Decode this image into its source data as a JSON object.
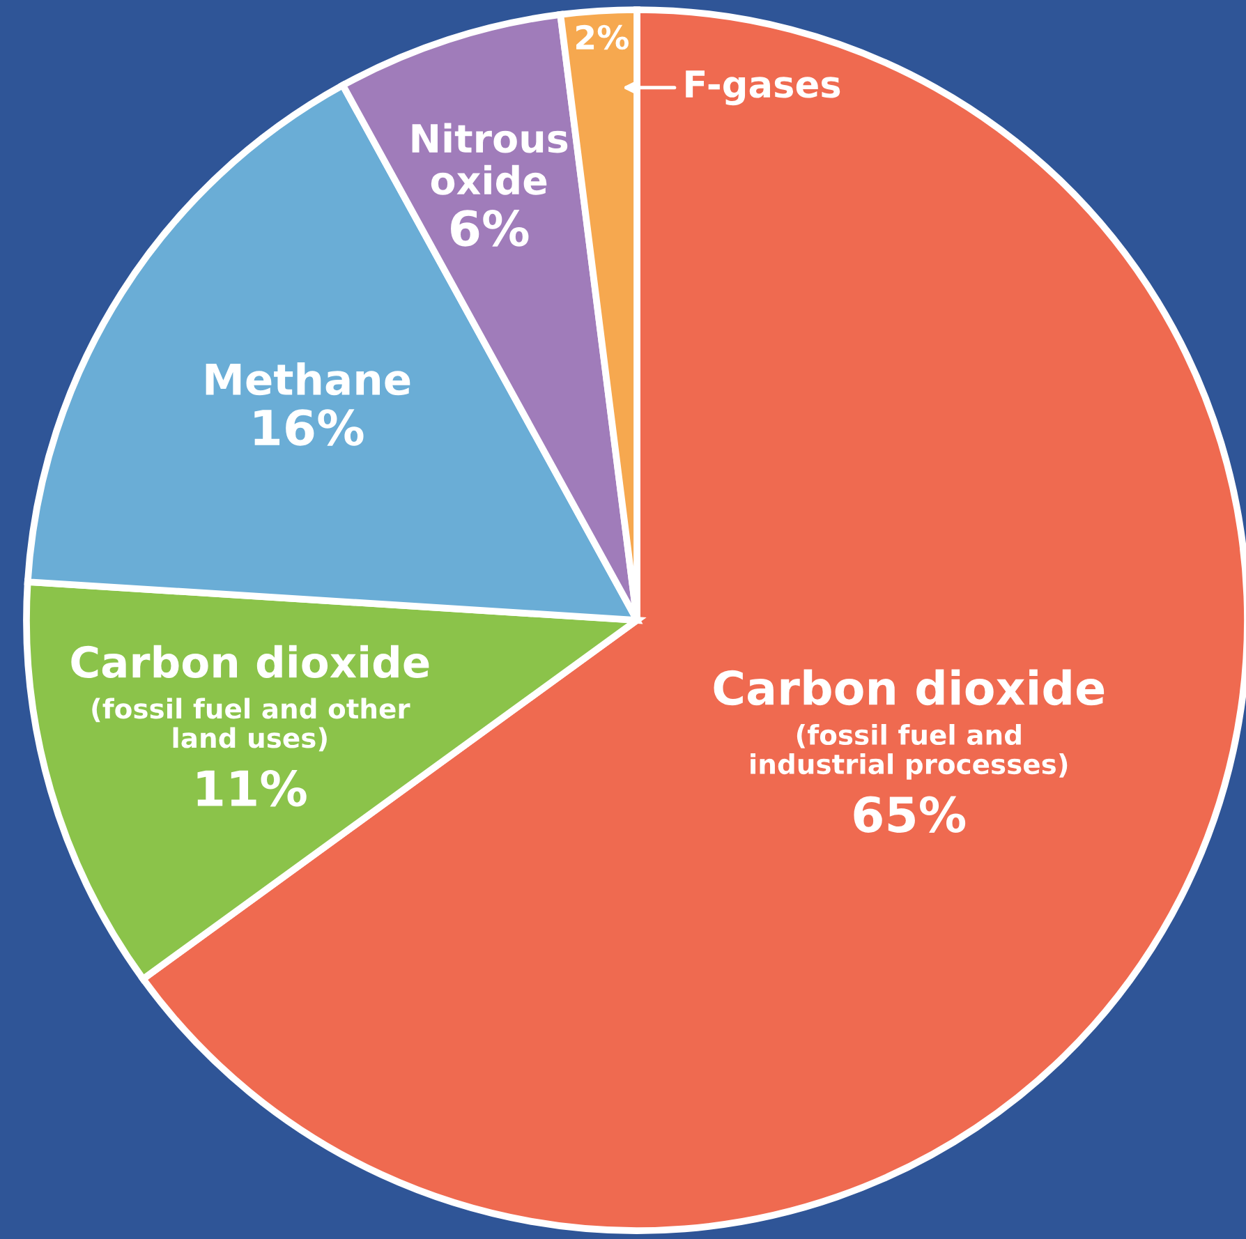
{
  "chart_data": {
    "type": "pie",
    "categories": [
      "Carbon dioxide\n(fossil fuel and\nindustrial processes)",
      "Carbon dioxide\n(fossil fuel and other\nland uses)",
      "Methane",
      "Nitrous\noxide",
      "F-gases"
    ],
    "values": [
      65,
      11,
      16,
      6,
      2
    ],
    "value_labels": [
      "65%",
      "11%",
      "16%",
      "6%",
      "2%"
    ],
    "colors": [
      "#ef6a50",
      "#8bc34a",
      "#6aadd6",
      "#a07cba",
      "#f6a84f"
    ]
  }
}
